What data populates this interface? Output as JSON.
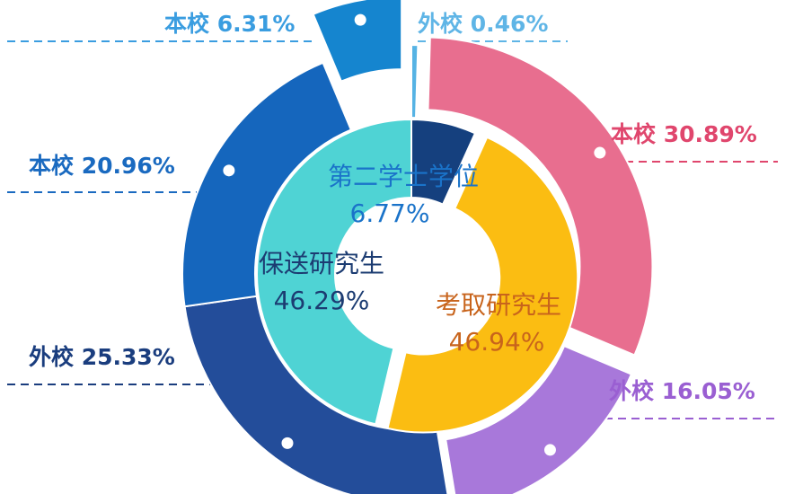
{
  "chart_data": {
    "type": "pie",
    "style": "nested-donut",
    "inner_ring": [
      {
        "label": "第二学士学位",
        "value": 6.77,
        "display": "6.77%",
        "color": "#15407e",
        "label_color": "#1a73c9"
      },
      {
        "label": "考取研究生",
        "value": 46.94,
        "display": "46.94%",
        "color": "#fbbd12",
        "label_color": "#c8641c"
      },
      {
        "label": "保送研究生",
        "value": 46.29,
        "display": "46.29%",
        "color": "#4fd3d4",
        "label_color": "#1c3c72"
      }
    ],
    "outer_ring": [
      {
        "parent": "第二学士学位",
        "label": "外校",
        "value": 0.46,
        "display": "外校 0.46%",
        "color": "#56b3e4",
        "label_color": "#5fb5e6"
      },
      {
        "parent": "考取研究生",
        "label": "本校",
        "value": 30.89,
        "display": "本校 30.89%",
        "color": "#e86e8f",
        "label_color": "#e0466d"
      },
      {
        "parent": "考取研究生",
        "label": "外校",
        "value": 16.05,
        "display": "外校 16.05%",
        "color": "#a878da",
        "label_color": "#9a5fd2"
      },
      {
        "parent": "保送研究生",
        "label": "外校",
        "value": 25.33,
        "display": "外校 25.33%",
        "color": "#234d9a",
        "label_color": "#1a3d7e"
      },
      {
        "parent": "保送研究生",
        "label": "本校",
        "value": 20.96,
        "display": "本校 20.96%",
        "color": "#1566bd",
        "label_color": "#1a6ac0"
      },
      {
        "parent": "第二学士学位",
        "label": "本校",
        "value": 6.31,
        "display": "本校 6.31%",
        "color": "#1585cf",
        "label_color": "#3a9de0"
      }
    ]
  }
}
